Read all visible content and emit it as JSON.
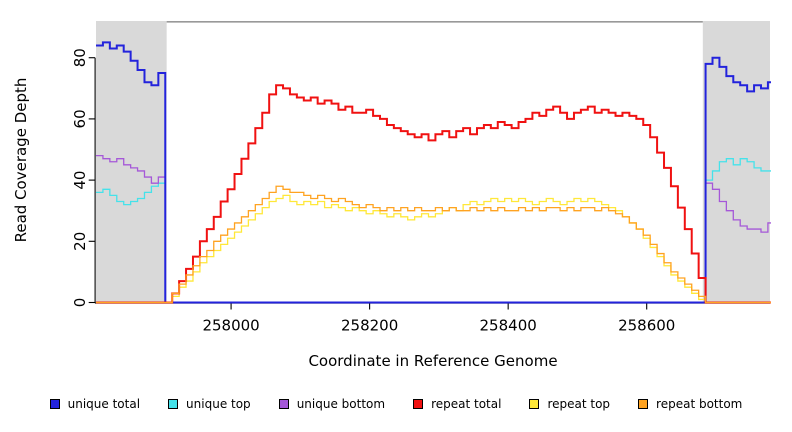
{
  "chart_data": {
    "type": "line",
    "style": "step",
    "title": "",
    "xlabel": "Coordinate in Reference Genome",
    "ylabel": "Read Coverage Depth",
    "xlim": [
      257805,
      258778
    ],
    "ylim": [
      0,
      92
    ],
    "xticks": [
      258000,
      258200,
      258400,
      258600
    ],
    "yticks": [
      0,
      20,
      40,
      60,
      80
    ],
    "grid": false,
    "legend_position": "bottom",
    "region_fill": "#d9d9d9",
    "shaded_regions": [
      {
        "x0": 257805,
        "x1": 257907
      },
      {
        "x0": 258681,
        "x1": 258778
      }
    ],
    "top_bar": {
      "x0": 257907,
      "x1": 258681,
      "color": "#999999"
    },
    "axis_color": "#000000",
    "x_start": 257805,
    "x_step": 10,
    "x_count": 99,
    "draw_order": [
      1,
      2,
      0,
      4,
      3,
      5
    ],
    "series": [
      {
        "name": "unique total",
        "color": "#2323dc",
        "width": 2,
        "values": [
          84,
          85,
          83,
          84,
          82,
          79,
          76,
          72,
          71,
          75,
          0,
          0,
          0,
          0,
          0,
          0,
          0,
          0,
          0,
          0,
          0,
          0,
          0,
          0,
          0,
          0,
          0,
          0,
          0,
          0,
          0,
          0,
          0,
          0,
          0,
          0,
          0,
          0,
          0,
          0,
          0,
          0,
          0,
          0,
          0,
          0,
          0,
          0,
          0,
          0,
          0,
          0,
          0,
          0,
          0,
          0,
          0,
          0,
          0,
          0,
          0,
          0,
          0,
          0,
          0,
          0,
          0,
          0,
          0,
          0,
          0,
          0,
          0,
          0,
          0,
          0,
          0,
          0,
          0,
          0,
          0,
          0,
          0,
          0,
          0,
          0,
          0,
          0,
          78,
          80,
          77,
          74,
          72,
          71,
          69,
          71,
          70,
          72,
          71
        ]
      },
      {
        "name": "unique top",
        "color": "#45e2ea",
        "width": 1.3,
        "values": [
          36,
          37,
          35,
          33,
          32,
          33,
          34,
          36,
          38,
          39,
          0,
          0,
          0,
          0,
          0,
          0,
          0,
          0,
          0,
          0,
          0,
          0,
          0,
          0,
          0,
          0,
          0,
          0,
          0,
          0,
          0,
          0,
          0,
          0,
          0,
          0,
          0,
          0,
          0,
          0,
          0,
          0,
          0,
          0,
          0,
          0,
          0,
          0,
          0,
          0,
          0,
          0,
          0,
          0,
          0,
          0,
          0,
          0,
          0,
          0,
          0,
          0,
          0,
          0,
          0,
          0,
          0,
          0,
          0,
          0,
          0,
          0,
          0,
          0,
          0,
          0,
          0,
          0,
          0,
          0,
          0,
          0,
          0,
          0,
          0,
          0,
          0,
          0,
          40,
          43,
          46,
          47,
          45,
          47,
          46,
          44,
          43,
          43,
          45
        ]
      },
      {
        "name": "unique bottom",
        "color": "#a558d8",
        "width": 1.3,
        "values": [
          48,
          47,
          46,
          47,
          45,
          44,
          43,
          41,
          39,
          41,
          0,
          0,
          0,
          0,
          0,
          0,
          0,
          0,
          0,
          0,
          0,
          0,
          0,
          0,
          0,
          0,
          0,
          0,
          0,
          0,
          0,
          0,
          0,
          0,
          0,
          0,
          0,
          0,
          0,
          0,
          0,
          0,
          0,
          0,
          0,
          0,
          0,
          0,
          0,
          0,
          0,
          0,
          0,
          0,
          0,
          0,
          0,
          0,
          0,
          0,
          0,
          0,
          0,
          0,
          0,
          0,
          0,
          0,
          0,
          0,
          0,
          0,
          0,
          0,
          0,
          0,
          0,
          0,
          0,
          0,
          0,
          0,
          0,
          0,
          0,
          0,
          0,
          0,
          39,
          37,
          33,
          30,
          27,
          25,
          24,
          24,
          23,
          26,
          25
        ]
      },
      {
        "name": "repeat total",
        "color": "#f01111",
        "width": 2,
        "values": [
          0,
          0,
          0,
          0,
          0,
          0,
          0,
          0,
          0,
          0,
          0,
          3,
          7,
          11,
          15,
          20,
          24,
          28,
          33,
          37,
          42,
          47,
          52,
          57,
          62,
          68,
          71,
          70,
          68,
          67,
          66,
          67,
          65,
          66,
          65,
          63,
          64,
          62,
          62,
          63,
          61,
          60,
          58,
          57,
          56,
          55,
          54,
          55,
          53,
          55,
          56,
          54,
          56,
          57,
          55,
          57,
          58,
          57,
          59,
          58,
          57,
          59,
          60,
          62,
          61,
          63,
          64,
          62,
          60,
          62,
          63,
          64,
          62,
          63,
          62,
          61,
          62,
          61,
          60,
          58,
          54,
          49,
          44,
          38,
          31,
          24,
          16,
          8,
          0,
          0,
          0,
          0,
          0,
          0,
          0,
          0,
          0,
          0,
          0
        ]
      },
      {
        "name": "repeat top",
        "color": "#ffe839",
        "width": 1.3,
        "values": [
          0,
          0,
          0,
          0,
          0,
          0,
          0,
          0,
          0,
          0,
          0,
          2,
          5,
          7,
          10,
          13,
          15,
          17,
          19,
          21,
          23,
          25,
          27,
          29,
          31,
          33,
          34,
          35,
          33,
          32,
          33,
          32,
          33,
          31,
          32,
          31,
          30,
          31,
          30,
          29,
          30,
          29,
          28,
          29,
          28,
          27,
          28,
          29,
          28,
          29,
          30,
          31,
          30,
          32,
          33,
          32,
          33,
          34,
          33,
          34,
          33,
          34,
          33,
          32,
          33,
          34,
          33,
          32,
          33,
          34,
          33,
          34,
          33,
          32,
          31,
          30,
          28,
          26,
          24,
          21,
          18,
          15,
          12,
          9,
          7,
          5,
          3,
          1,
          0,
          0,
          0,
          0,
          0,
          0,
          0,
          0,
          0,
          0,
          0
        ]
      },
      {
        "name": "repeat bottom",
        "color": "#ffa321",
        "width": 1.3,
        "values": [
          0,
          0,
          0,
          0,
          0,
          0,
          0,
          0,
          0,
          0,
          0,
          3,
          6,
          9,
          12,
          15,
          17,
          20,
          22,
          24,
          26,
          28,
          30,
          32,
          34,
          36,
          38,
          37,
          36,
          36,
          35,
          34,
          35,
          34,
          33,
          34,
          33,
          32,
          31,
          32,
          31,
          30,
          31,
          30,
          31,
          30,
          31,
          30,
          30,
          31,
          30,
          31,
          30,
          30,
          31,
          30,
          31,
          30,
          31,
          30,
          30,
          31,
          30,
          31,
          30,
          31,
          31,
          30,
          31,
          30,
          31,
          31,
          30,
          31,
          30,
          29,
          28,
          26,
          24,
          22,
          19,
          16,
          13,
          10,
          8,
          6,
          4,
          2,
          0,
          0,
          0,
          0,
          0,
          0,
          0,
          0,
          0,
          0,
          0
        ]
      }
    ]
  }
}
